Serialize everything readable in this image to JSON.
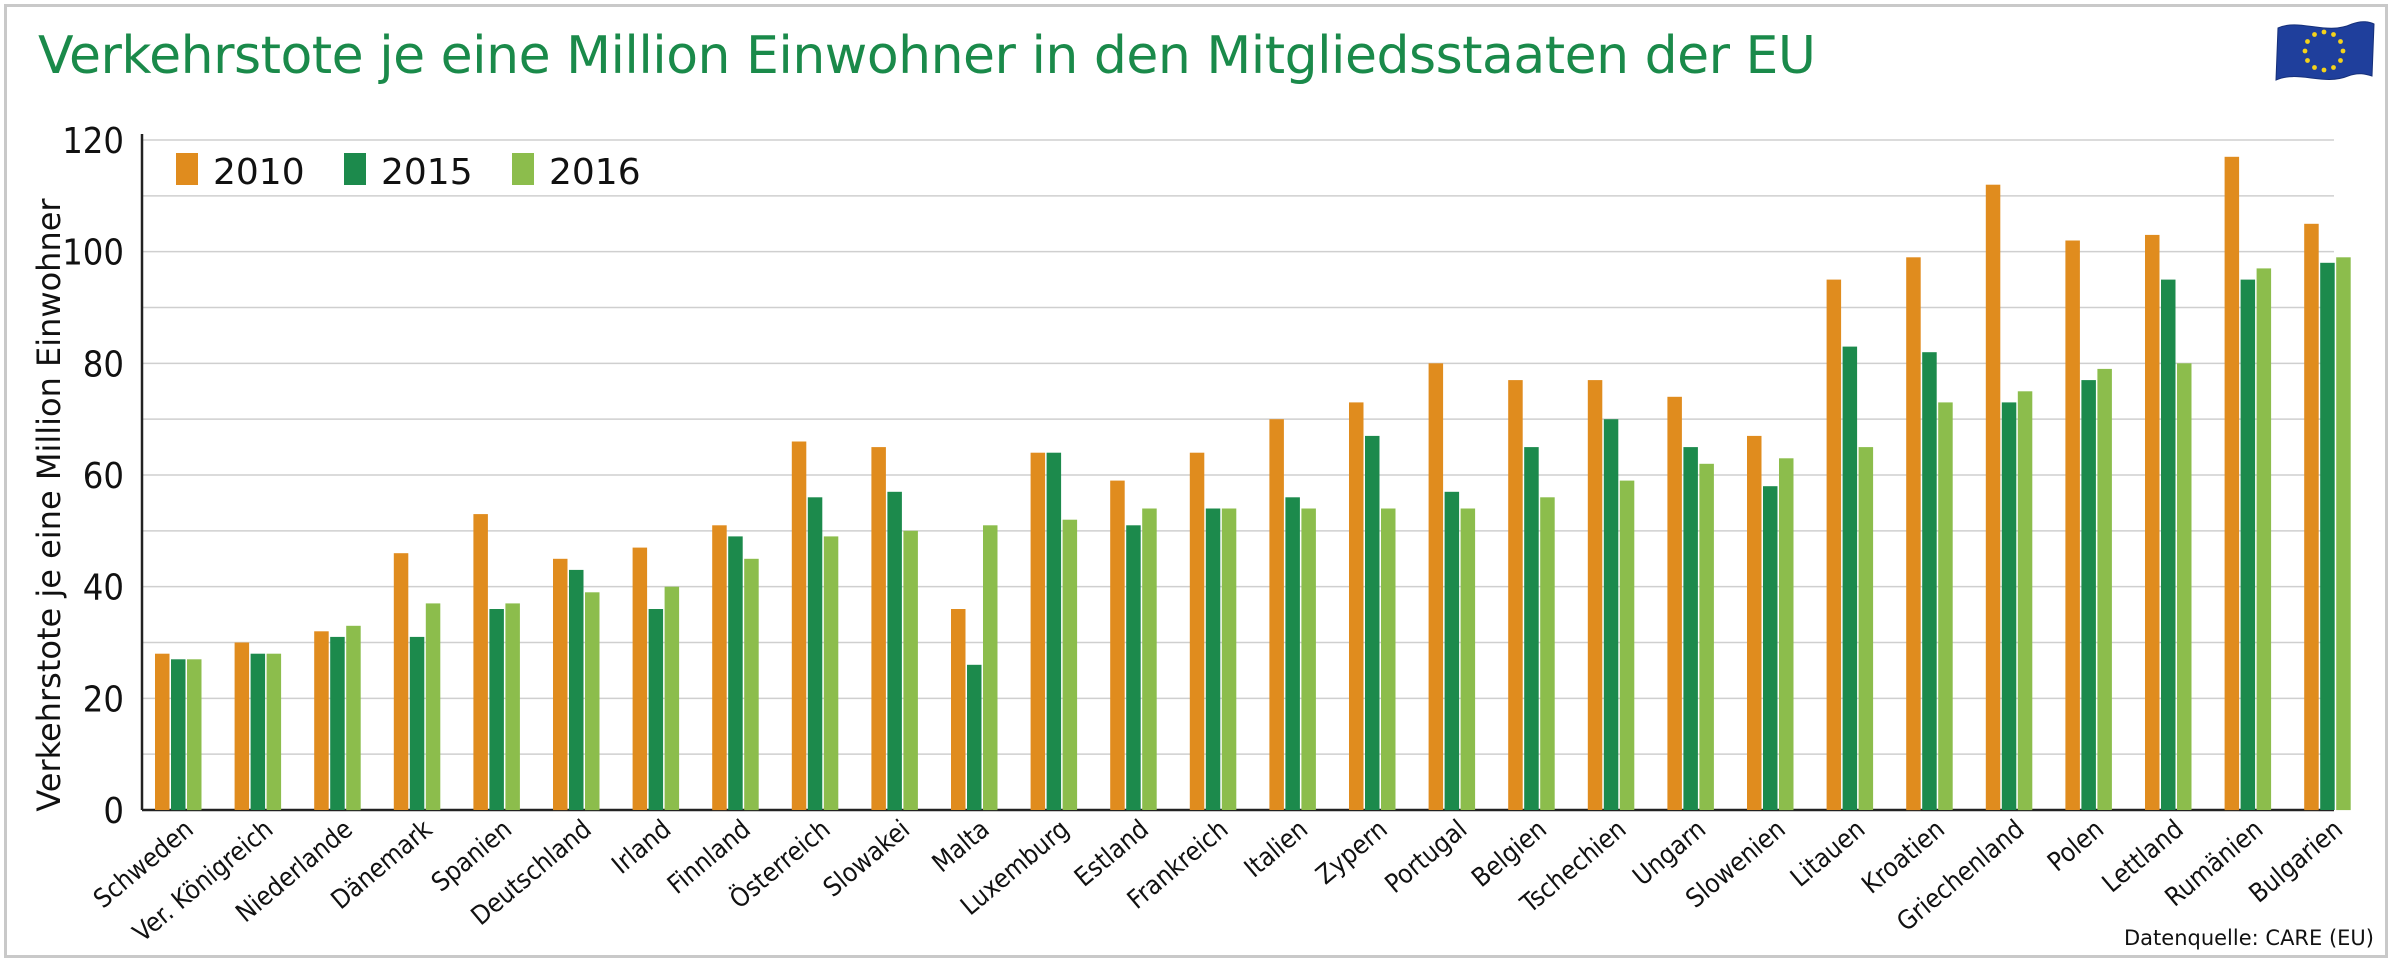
{
  "title": "Verkehrstote je eine Million Einwohner in den Mitgliedsstaaten der EU",
  "source": "Datenquelle: CARE (EU)",
  "flag_icon": "eu-flag-icon",
  "colors": {
    "s2010": "#e08c1e",
    "s2015": "#1c8a4c",
    "s2016": "#8cbd4c",
    "title": "#1a8a4a",
    "grid": "#cfcfcf"
  },
  "chart_data": {
    "type": "bar",
    "title": "Verkehrstote je eine Million Einwohner in den Mitgliedsstaaten der EU",
    "ylabel": "Verkehrstote je eine Million Einwohner",
    "xlabel": "",
    "ylim": [
      0,
      120
    ],
    "yticks": [
      0,
      20,
      40,
      60,
      80,
      100,
      120
    ],
    "grid": true,
    "legend_position": "top-left",
    "categories": [
      "Schweden",
      "Ver. Königreich",
      "Niederlande",
      "Dänemark",
      "Spanien",
      "Deutschland",
      "Irland",
      "Finnland",
      "Österreich",
      "Slowakei",
      "Malta",
      "Luxemburg",
      "Estland",
      "Frankreich",
      "Italien",
      "Zypern",
      "Portugal",
      "Belgien",
      "Tschechien",
      "Ungarn",
      "Slowenien",
      "Litauen",
      "Kroatien",
      "Griechenland",
      "Polen",
      "Lettland",
      "Rumänien",
      "Bulgarien"
    ],
    "series": [
      {
        "name": "2010",
        "color": "#e08c1e",
        "values": [
          28,
          30,
          32,
          46,
          53,
          45,
          47,
          51,
          66,
          65,
          36,
          64,
          59,
          64,
          70,
          73,
          80,
          77,
          77,
          74,
          67,
          95,
          99,
          112,
          102,
          103,
          117,
          105
        ]
      },
      {
        "name": "2015",
        "color": "#1c8a4c",
        "values": [
          27,
          28,
          31,
          31,
          36,
          43,
          36,
          49,
          56,
          57,
          26,
          64,
          51,
          54,
          56,
          67,
          57,
          65,
          70,
          65,
          58,
          83,
          82,
          73,
          77,
          95,
          95,
          98
        ]
      },
      {
        "name": "2016",
        "color": "#8cbd4c",
        "values": [
          27,
          28,
          33,
          37,
          37,
          39,
          40,
          45,
          49,
          50,
          51,
          52,
          54,
          54,
          54,
          54,
          54,
          56,
          59,
          62,
          63,
          65,
          73,
          75,
          79,
          80,
          97,
          99
        ]
      }
    ]
  }
}
